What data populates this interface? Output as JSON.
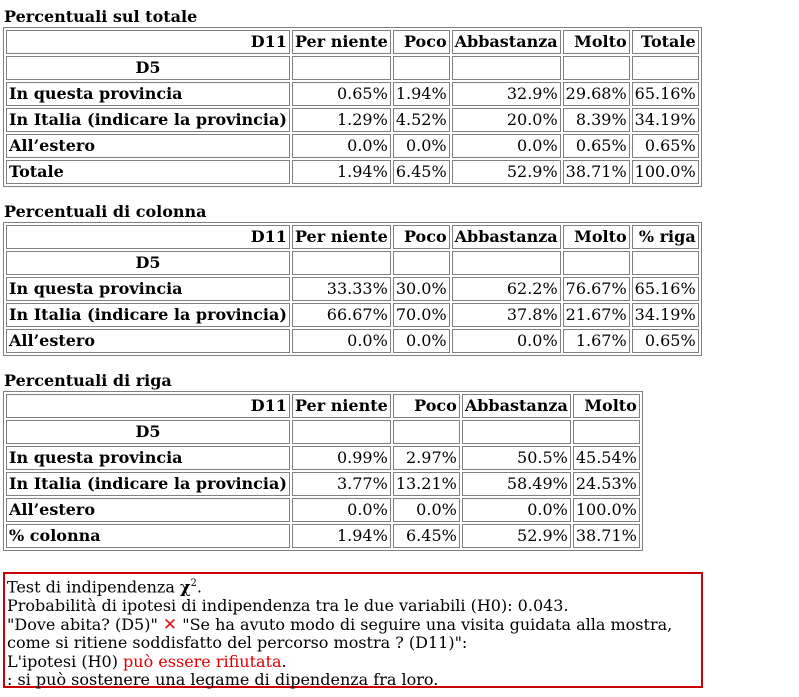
{
  "tables": [
    {
      "caption": "Percentuali sul totale",
      "corner": "D11",
      "row_header": "D5",
      "columns": [
        "Per niente",
        "Poco",
        "Abbastanza",
        "Molto",
        "Totale"
      ],
      "rows": [
        {
          "label": "In questa provincia",
          "values": [
            "0.65%",
            "1.94%",
            "32.9%",
            "29.68%",
            "65.16%"
          ]
        },
        {
          "label": "In Italia (indicare la provincia)",
          "values": [
            "1.29%",
            "4.52%",
            "20.0%",
            "8.39%",
            "34.19%"
          ]
        },
        {
          "label": "All’estero",
          "values": [
            "0.0%",
            "0.0%",
            "0.0%",
            "0.65%",
            "0.65%"
          ]
        },
        {
          "label": "Totale",
          "values": [
            "1.94%",
            "6.45%",
            "52.9%",
            "38.71%",
            "100.0%"
          ]
        }
      ]
    },
    {
      "caption": "Percentuali di colonna",
      "corner": "D11",
      "row_header": "D5",
      "columns": [
        "Per niente",
        "Poco",
        "Abbastanza",
        "Molto",
        "% riga"
      ],
      "rows": [
        {
          "label": "In questa provincia",
          "values": [
            "33.33%",
            "30.0%",
            "62.2%",
            "76.67%",
            "65.16%"
          ]
        },
        {
          "label": "In Italia (indicare la provincia)",
          "values": [
            "66.67%",
            "70.0%",
            "37.8%",
            "21.67%",
            "34.19%"
          ]
        },
        {
          "label": "All’estero",
          "values": [
            "0.0%",
            "0.0%",
            "0.0%",
            "1.67%",
            "0.65%"
          ]
        }
      ]
    },
    {
      "caption": "Percentuali di riga",
      "corner": "D11",
      "row_header": "D5",
      "columns": [
        "Per niente",
        "Poco",
        "Abbastanza",
        "Molto"
      ],
      "rows": [
        {
          "label": "In questa provincia",
          "values": [
            "0.99%",
            "2.97%",
            "50.5%",
            "45.54%"
          ]
        },
        {
          "label": "In Italia (indicare la provincia)",
          "values": [
            "3.77%",
            "13.21%",
            "58.49%",
            "24.53%"
          ]
        },
        {
          "label": "All’estero",
          "values": [
            "0.0%",
            "0.0%",
            "0.0%",
            "100.0%"
          ]
        },
        {
          "label": "% colonna",
          "values": [
            "1.94%",
            "6.45%",
            "52.9%",
            "38.71%"
          ]
        }
      ]
    }
  ],
  "test": {
    "title_prefix": "Test di indipendenza ",
    "chi_symbol": "χ",
    "chi_sup": "2",
    "title_suffix": ".",
    "probability_line": "Probabilità di ipotesi di indipendenza tra le due variabili (H0): 0.043.",
    "var1": "\"Dove abita? (D5)\"",
    "cross_icon": "cross-mark-icon",
    "cross_glyph": "✕",
    "var2_line1": "\"Se ha avuto modo di seguire una visita guidata alla mostra,",
    "var2_line2": "come si ritiene soddisfatto del percorso mostra ? (D11)\":",
    "hypothesis_prefix": "L'ipotesi (H0) ",
    "hypothesis_result": "può essere rifiutata",
    "hypothesis_suffix": ".",
    "conclusion": ": si può sostenere una legame di dipendenza fra loro.",
    "result_color": "#dd0000",
    "border_color": "#cc0000"
  }
}
